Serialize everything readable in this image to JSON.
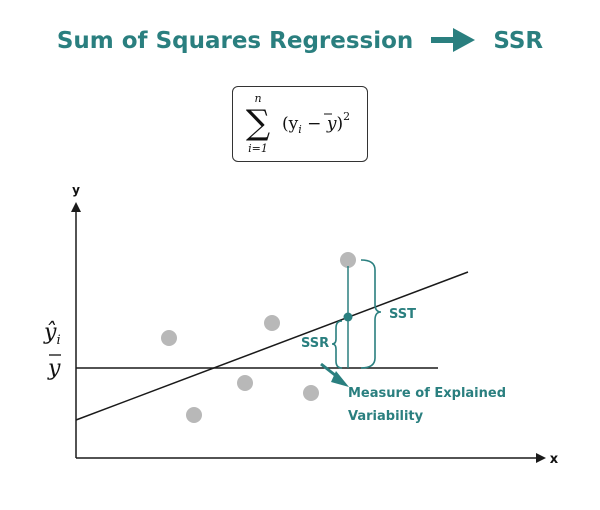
{
  "title": {
    "left": "Sum of Squares Regression",
    "right": "SSR",
    "arrow_icon": "arrow-right-icon",
    "color": "#2a7f7f"
  },
  "formula": {
    "sum_upper": "n",
    "sum_symbol": "∑",
    "sum_lower": "i=1",
    "body": "(y",
    "sub": "i",
    "minus": " − ",
    "ybar": "y",
    "close": ")",
    "power": "2"
  },
  "axes": {
    "y_label": "y",
    "x_label": "x",
    "yhat_label": "ŷ",
    "yhat_sub": "i",
    "ybar_label": "y"
  },
  "annotations": {
    "sst": "SST",
    "ssr": "SSR",
    "explained_line1": "Measure of Explained",
    "explained_line2": "Variability"
  },
  "colors": {
    "accent": "#2a7f7f",
    "points": "#b8b8b8",
    "line": "#1a1a1a"
  }
}
